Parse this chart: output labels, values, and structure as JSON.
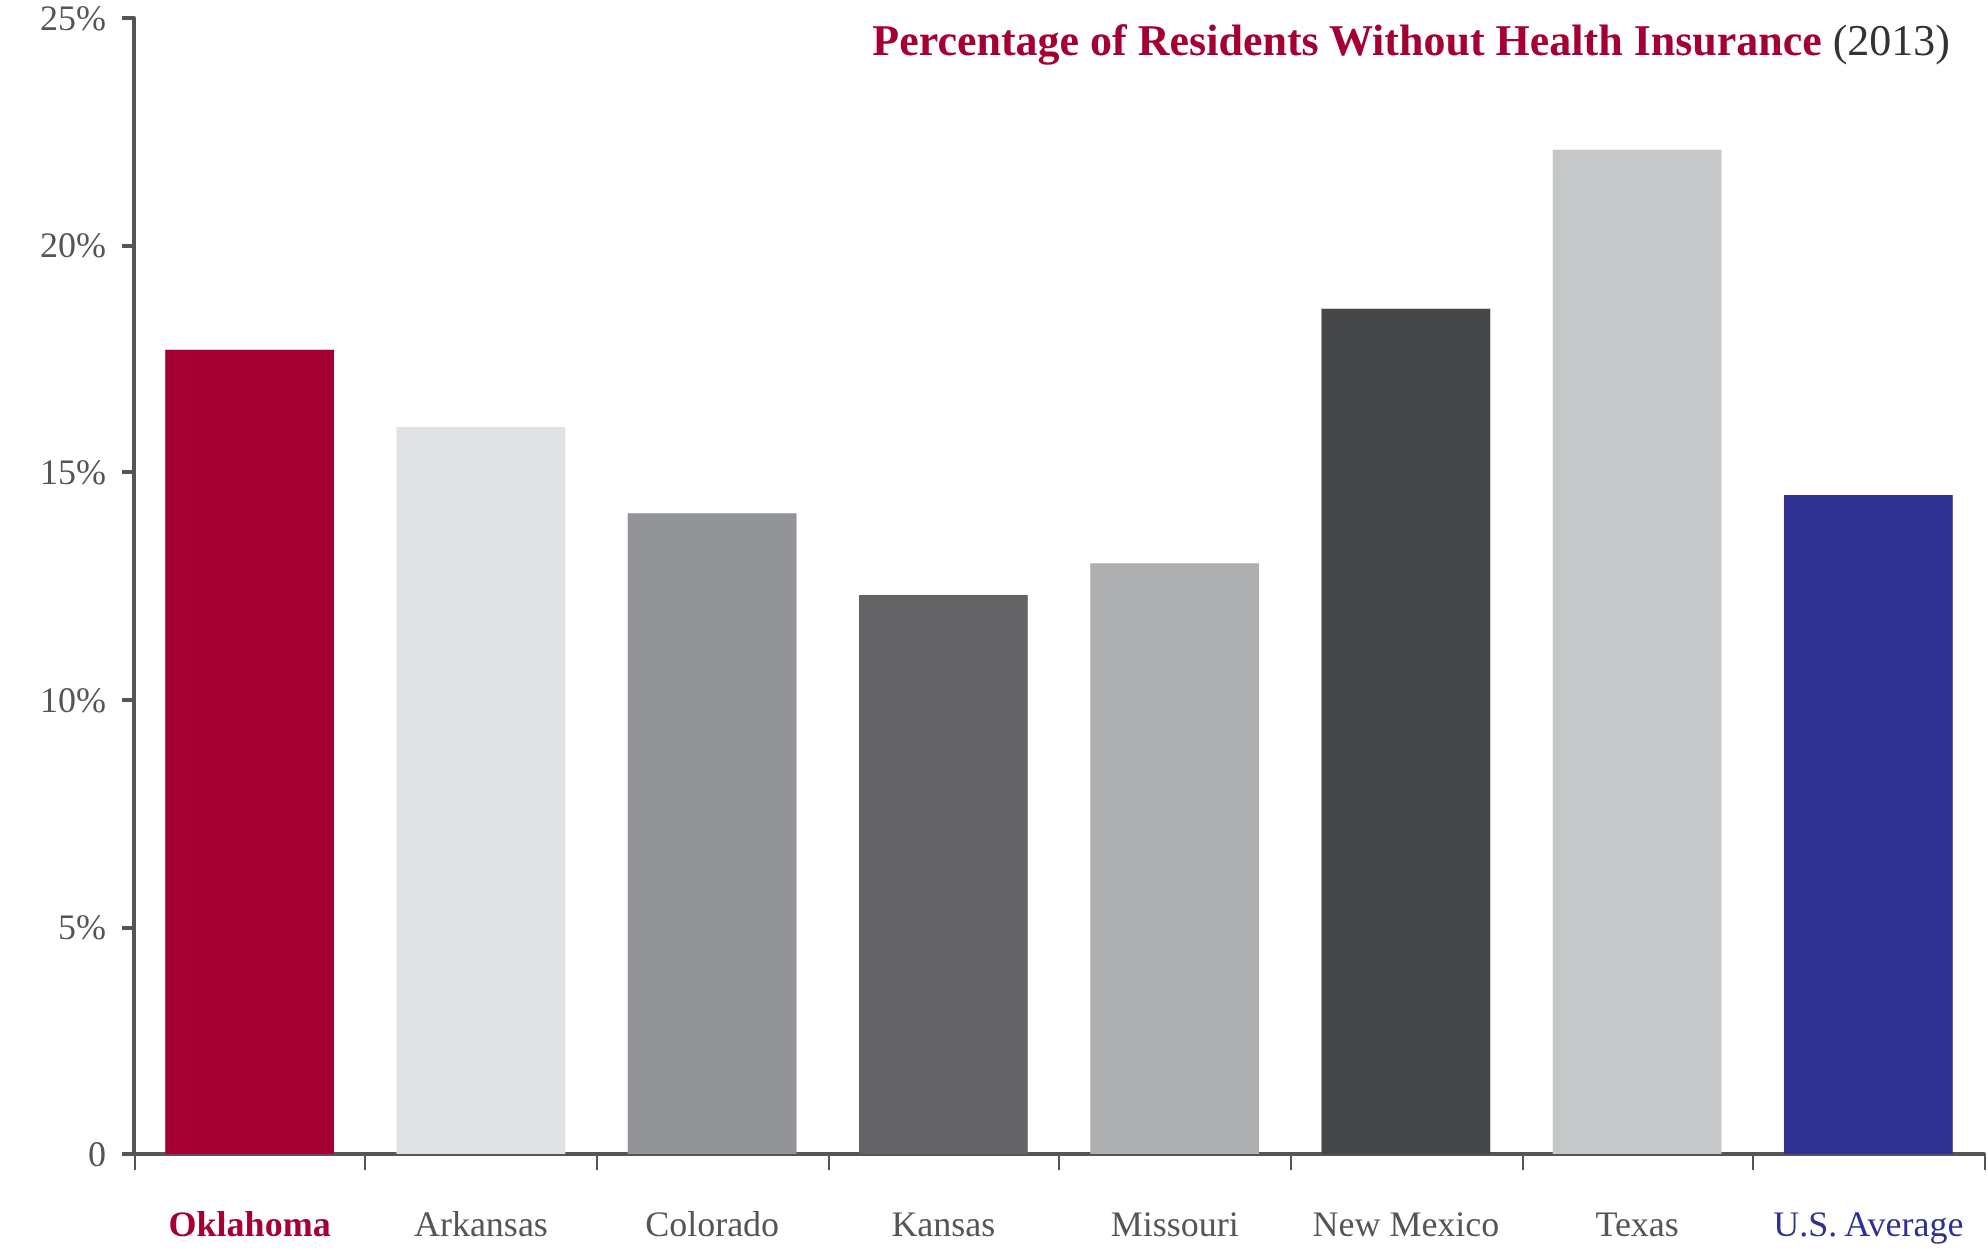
{
  "chart_data": {
    "type": "bar",
    "title": "Percentage of Residents Without Health Insurance",
    "subtitle": "(2013)",
    "categories": [
      "Oklahoma",
      "Arkansas",
      "Colorado",
      "Kansas",
      "Missouri",
      "New Mexico",
      "Texas",
      "U.S. Average"
    ],
    "values": [
      17.7,
      16.0,
      14.1,
      12.3,
      13.0,
      18.6,
      22.1,
      14.5
    ],
    "colors": [
      "#a50034",
      "#e1e2e4",
      "#939497",
      "#646466",
      "#aeafb1",
      "#464749",
      "#c6c7c9",
      "#2e3192"
    ],
    "ylim": [
      0,
      25
    ],
    "yticks": [
      {
        "value": 0,
        "label": "0"
      },
      {
        "value": 5,
        "label": "5%"
      },
      {
        "value": 10,
        "label": "10%"
      },
      {
        "value": 15,
        "label": "15%"
      },
      {
        "value": 20,
        "label": "20%"
      },
      {
        "value": 25,
        "label": "25%"
      }
    ],
    "grid": false
  }
}
